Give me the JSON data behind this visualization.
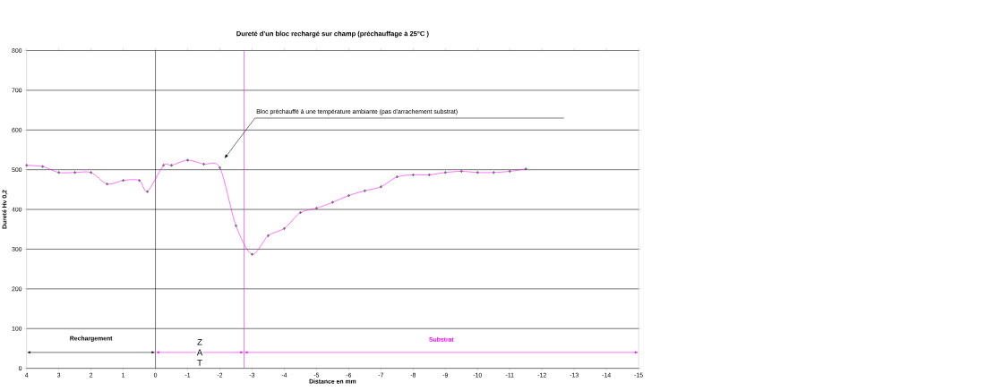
{
  "chart_data": {
    "type": "line",
    "title": "Dureté d'un bloc rechargé sur champ  (préchauffage à 25°C  )",
    "xlabel": "Distance en mm",
    "ylabel": "Dureté Hv 0,2",
    "x": [
      4,
      3.5,
      3,
      2.5,
      2,
      1.5,
      1,
      0.5,
      0.25,
      -0.25,
      -0.5,
      -1,
      -1.5,
      -2,
      -2.5,
      -3,
      -3.5,
      -4,
      -4.5,
      -5,
      -5.5,
      -6,
      -6.5,
      -7,
      -7.5,
      -8,
      -8.5,
      -9,
      -9.5,
      -10,
      -10.5,
      -11,
      -11.5
    ],
    "series": [
      {
        "color": "#ff00ff",
        "values": [
          511,
          508,
          493,
          493,
          493,
          464,
          473,
          473,
          445,
          511,
          511,
          524,
          514,
          505,
          359,
          287,
          334,
          352,
          392,
          403,
          418,
          435,
          447,
          457,
          482,
          487,
          487,
          493,
          496,
          493,
          493,
          496,
          502
        ]
      }
    ],
    "xlim": [
      4,
      -15
    ],
    "xticks": [
      4,
      3,
      2,
      1,
      0,
      -1,
      -2,
      -3,
      -4,
      -5,
      -6,
      -7,
      -8,
      -9,
      -10,
      -11,
      -12,
      -13,
      -14,
      -15
    ],
    "ylim": [
      0,
      800
    ],
    "yticks": [
      0,
      100,
      200,
      300,
      400,
      500,
      600,
      700,
      800
    ],
    "grid": "y",
    "marker": "diamond",
    "line_style": "solid",
    "annotations": [
      "Bloc préchauffé à une température ambiante (pas d'arrachement substrat)",
      "Rechargement",
      "Z A T",
      "Substrat"
    ],
    "ref_lines": [
      {
        "axis": "x",
        "value": 0,
        "color": "#000000"
      },
      {
        "axis": "x",
        "value": -2.75,
        "color": "#ff00ff"
      }
    ]
  }
}
